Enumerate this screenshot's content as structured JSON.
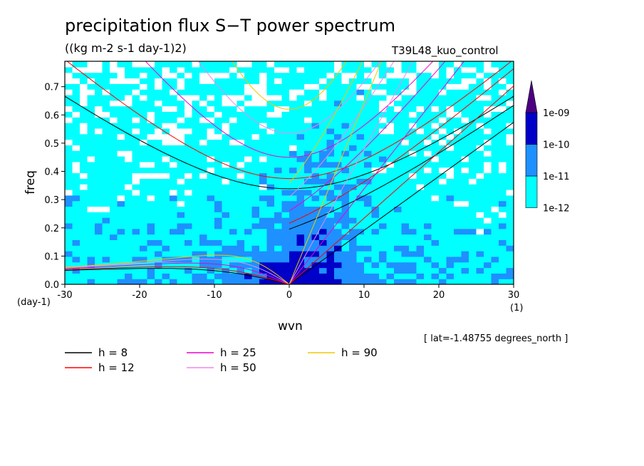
{
  "chart_data": {
    "type": "heatmap",
    "title": "precipitation flux S−T power spectrum",
    "subtitle": "((kg m-2 s-1 day-1)2)",
    "run_label": "T39L48_kuo_control",
    "xlabel": "wvn",
    "ylabel": "freq",
    "x_unit": "(1)",
    "y_unit": "(day-1)",
    "xlim": [
      -30,
      30
    ],
    "ylim": [
      0,
      0.79
    ],
    "x_ticks": [
      "-30",
      "-20",
      "-10",
      "0",
      "10",
      "20",
      "30"
    ],
    "y_ticks": [
      "0.0",
      "0.1",
      "0.2",
      "0.3",
      "0.4",
      "0.5",
      "0.6",
      "0.7"
    ],
    "annotation": "[ lat=-1.48755 degrees_north ]",
    "colorbar": {
      "levels": [
        "1e-12",
        "1e-11",
        "1e-10",
        "1e-09"
      ],
      "colors": [
        "#ffffff",
        "#00ffff",
        "#1e90ff",
        "#0000c8",
        "#4b0082"
      ]
    },
    "dispersion_curves": [
      {
        "h": 8,
        "label": "h =  8",
        "color": "#000000"
      },
      {
        "h": 12,
        "label": "h = 12",
        "color": "#ff0000"
      },
      {
        "h": 25,
        "label": "h = 25",
        "color": "#ee00cc"
      },
      {
        "h": 50,
        "label": "h = 50",
        "color": "#ee88ee"
      },
      {
        "h": 90,
        "label": "h = 90",
        "color": "#f0c800"
      }
    ]
  }
}
